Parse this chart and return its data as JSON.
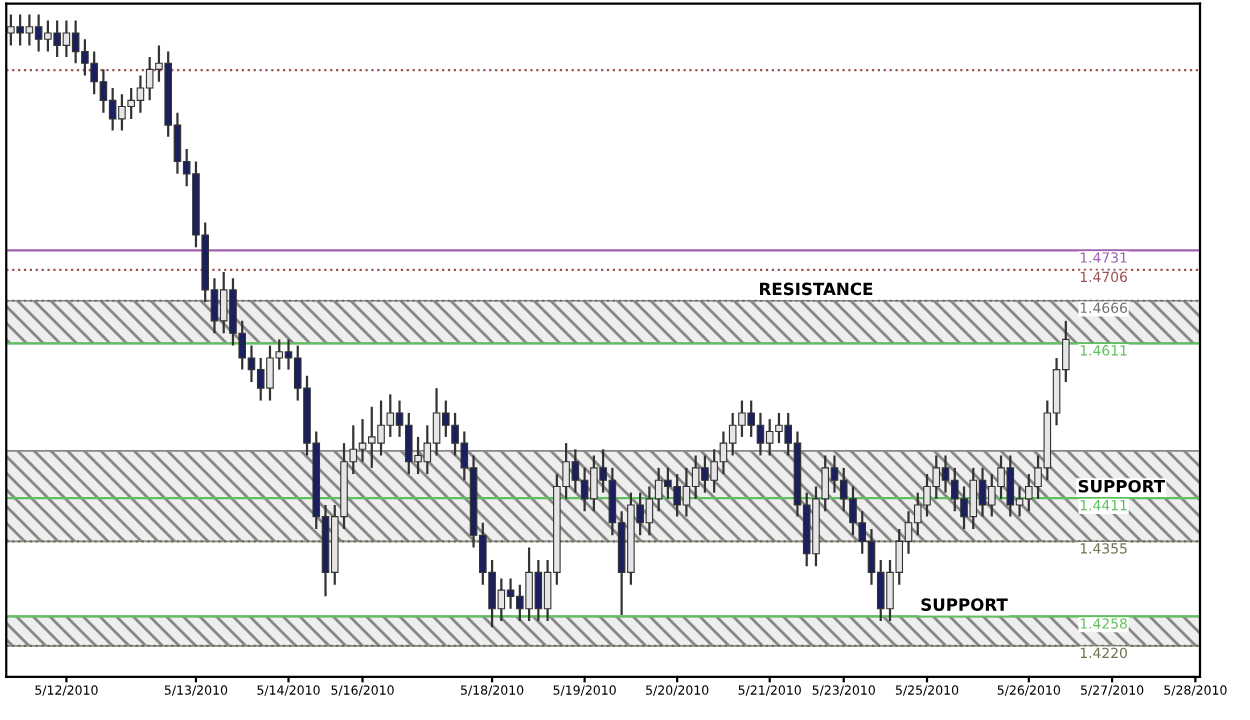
{
  "chart_data": {
    "type": "candlestick",
    "categories": [
      null,
      null,
      null,
      null,
      null,
      null,
      "5/12/2010",
      null,
      null,
      null,
      null,
      null,
      null,
      null,
      null,
      null,
      null,
      null,
      null,
      null,
      "5/13/2010",
      null,
      null,
      null,
      null,
      null,
      null,
      null,
      null,
      null,
      "5/14/2010",
      null,
      null,
      null,
      null,
      null,
      null,
      null,
      "5/16/2010",
      null,
      null,
      null,
      null,
      null,
      null,
      null,
      null,
      null,
      null,
      null,
      null,
      null,
      "5/18/2010",
      null,
      null,
      null,
      null,
      null,
      null,
      null,
      null,
      null,
      "5/19/2010",
      null,
      null,
      null,
      null,
      null,
      null,
      null,
      null,
      null,
      "5/20/2010",
      null,
      null,
      null,
      null,
      null,
      null,
      null,
      null,
      null,
      "5/21/2010",
      null,
      null,
      null,
      null,
      null,
      null,
      null,
      "5/23/2010",
      null,
      null,
      null,
      null,
      null,
      null,
      null,
      null,
      "5/25/2010",
      null,
      null,
      null,
      null,
      null,
      null,
      null,
      null,
      null,
      null,
      "5/26/2010",
      null,
      null,
      null,
      null,
      null,
      null,
      null,
      null,
      "5/27/2010",
      null,
      null,
      null,
      null,
      null,
      null,
      null,
      null,
      "5/28/2010"
    ],
    "ohlc": [
      [
        1.5012,
        1.5036,
        1.4996,
        1.502
      ],
      [
        1.502,
        1.5036,
        1.4996,
        1.5012
      ],
      [
        1.5012,
        1.5036,
        1.4996,
        1.502
      ],
      [
        1.502,
        1.5036,
        1.4988,
        1.5004
      ],
      [
        1.5004,
        1.5028,
        1.4988,
        1.5012
      ],
      [
        1.5012,
        1.5028,
        1.4981,
        1.4996
      ],
      [
        1.4996,
        1.5028,
        1.4981,
        1.5012
      ],
      [
        1.5012,
        1.5028,
        1.4973,
        1.4988
      ],
      [
        1.4988,
        1.5004,
        1.4957,
        1.4973
      ],
      [
        1.4973,
        1.4988,
        1.4933,
        1.4949
      ],
      [
        1.4949,
        1.4965,
        1.4909,
        1.4925
      ],
      [
        1.4925,
        1.4941,
        1.4886,
        1.4901
      ],
      [
        1.4901,
        1.4933,
        1.4886,
        1.4917
      ],
      [
        1.4917,
        1.4941,
        1.4901,
        1.4925
      ],
      [
        1.4925,
        1.4957,
        1.4909,
        1.4941
      ],
      [
        1.4941,
        1.4981,
        1.4925,
        1.4965
      ],
      [
        1.4965,
        1.4996,
        1.4949,
        1.4973
      ],
      [
        1.4973,
        1.4988,
        1.4878,
        1.4893
      ],
      [
        1.4893,
        1.4909,
        1.483,
        1.4846
      ],
      [
        1.4846,
        1.4862,
        1.4814,
        1.483
      ],
      [
        1.483,
        1.4846,
        1.4735,
        1.4751
      ],
      [
        1.4751,
        1.4767,
        1.4664,
        1.468
      ],
      [
        1.468,
        1.4695,
        1.4624,
        1.464
      ],
      [
        1.464,
        1.4703,
        1.4624,
        1.468
      ],
      [
        1.468,
        1.4695,
        1.4608,
        1.4624
      ],
      [
        1.4624,
        1.464,
        1.4577,
        1.4592
      ],
      [
        1.4592,
        1.4608,
        1.4561,
        1.4577
      ],
      [
        1.4577,
        1.4592,
        1.4537,
        1.4553
      ],
      [
        1.4553,
        1.4608,
        1.4537,
        1.4592
      ],
      [
        1.4592,
        1.4616,
        1.4577,
        1.46
      ],
      [
        1.46,
        1.4616,
        1.4577,
        1.4592
      ],
      [
        1.4592,
        1.4608,
        1.4537,
        1.4553
      ],
      [
        1.4553,
        1.4569,
        1.4466,
        1.4482
      ],
      [
        1.4482,
        1.4497,
        1.4371,
        1.4387
      ],
      [
        1.4387,
        1.4402,
        1.4284,
        1.4315
      ],
      [
        1.4315,
        1.4402,
        1.4299,
        1.4387
      ],
      [
        1.4387,
        1.4482,
        1.4371,
        1.4458
      ],
      [
        1.4458,
        1.4505,
        1.4442,
        1.4474
      ],
      [
        1.4474,
        1.4513,
        1.4458,
        1.4482
      ],
      [
        1.4482,
        1.4529,
        1.445,
        1.449
      ],
      [
        1.4482,
        1.4537,
        1.4466,
        1.4505
      ],
      [
        1.4505,
        1.4545,
        1.449,
        1.4521
      ],
      [
        1.4521,
        1.4537,
        1.449,
        1.4505
      ],
      [
        1.4505,
        1.4521,
        1.4442,
        1.4458
      ],
      [
        1.4458,
        1.449,
        1.4442,
        1.4466
      ],
      [
        1.4458,
        1.4505,
        1.4442,
        1.4482
      ],
      [
        1.4482,
        1.4553,
        1.4466,
        1.4521
      ],
      [
        1.4521,
        1.4537,
        1.449,
        1.4505
      ],
      [
        1.4505,
        1.4521,
        1.4466,
        1.4482
      ],
      [
        1.4482,
        1.4497,
        1.4434,
        1.445
      ],
      [
        1.445,
        1.4466,
        1.4347,
        1.4363
      ],
      [
        1.4363,
        1.4379,
        1.4299,
        1.4315
      ],
      [
        1.4315,
        1.4331,
        1.4244,
        1.4268
      ],
      [
        1.4268,
        1.4307,
        1.4252,
        1.4292
      ],
      [
        1.4292,
        1.4307,
        1.4268,
        1.4284
      ],
      [
        1.4284,
        1.4299,
        1.4252,
        1.4268
      ],
      [
        1.4268,
        1.4347,
        1.4252,
        1.4315
      ],
      [
        1.4315,
        1.4331,
        1.4252,
        1.4268
      ],
      [
        1.4268,
        1.4331,
        1.4252,
        1.4315
      ],
      [
        1.4315,
        1.4442,
        1.4299,
        1.4426
      ],
      [
        1.4426,
        1.4482,
        1.441,
        1.4458
      ],
      [
        1.4458,
        1.4474,
        1.4418,
        1.4434
      ],
      [
        1.4434,
        1.445,
        1.4394,
        1.441
      ],
      [
        1.441,
        1.4466,
        1.4394,
        1.445
      ],
      [
        1.445,
        1.4474,
        1.4418,
        1.4434
      ],
      [
        1.4434,
        1.445,
        1.4363,
        1.4379
      ],
      [
        1.4379,
        1.4394,
        1.426,
        1.4315
      ],
      [
        1.4315,
        1.4418,
        1.4299,
        1.4402
      ],
      [
        1.4402,
        1.4418,
        1.4363,
        1.4379
      ],
      [
        1.4379,
        1.4426,
        1.4363,
        1.441
      ],
      [
        1.441,
        1.445,
        1.4394,
        1.4434
      ],
      [
        1.4434,
        1.445,
        1.441,
        1.4426
      ],
      [
        1.4426,
        1.4442,
        1.4387,
        1.4402
      ],
      [
        1.4402,
        1.445,
        1.4387,
        1.4426
      ],
      [
        1.4426,
        1.4466,
        1.441,
        1.445
      ],
      [
        1.445,
        1.4466,
        1.4418,
        1.4434
      ],
      [
        1.4434,
        1.4474,
        1.4418,
        1.4458
      ],
      [
        1.4458,
        1.4497,
        1.4442,
        1.4482
      ],
      [
        1.4482,
        1.4521,
        1.4466,
        1.4505
      ],
      [
        1.4505,
        1.4537,
        1.449,
        1.4521
      ],
      [
        1.4521,
        1.4537,
        1.449,
        1.4505
      ],
      [
        1.4505,
        1.4521,
        1.4466,
        1.4482
      ],
      [
        1.4482,
        1.4513,
        1.4466,
        1.4497
      ],
      [
        1.4497,
        1.4521,
        1.4482,
        1.4505
      ],
      [
        1.4505,
        1.4521,
        1.4466,
        1.4482
      ],
      [
        1.4482,
        1.4497,
        1.4387,
        1.4402
      ],
      [
        1.4402,
        1.4418,
        1.4323,
        1.4339
      ],
      [
        1.4339,
        1.4426,
        1.4323,
        1.441
      ],
      [
        1.441,
        1.4466,
        1.4394,
        1.445
      ],
      [
        1.445,
        1.4466,
        1.4418,
        1.4434
      ],
      [
        1.4434,
        1.445,
        1.4394,
        1.441
      ],
      [
        1.441,
        1.4426,
        1.4363,
        1.4379
      ],
      [
        1.4379,
        1.4394,
        1.4339,
        1.4355
      ],
      [
        1.4355,
        1.4371,
        1.4299,
        1.4315
      ],
      [
        1.4315,
        1.4331,
        1.4252,
        1.4268
      ],
      [
        1.4268,
        1.4331,
        1.4252,
        1.4315
      ],
      [
        1.4315,
        1.4371,
        1.4299,
        1.4355
      ],
      [
        1.4355,
        1.4394,
        1.4339,
        1.4379
      ],
      [
        1.4379,
        1.4418,
        1.4363,
        1.4402
      ],
      [
        1.4402,
        1.4442,
        1.4387,
        1.4426
      ],
      [
        1.4426,
        1.4466,
        1.441,
        1.445
      ],
      [
        1.445,
        1.4466,
        1.4418,
        1.4434
      ],
      [
        1.4434,
        1.445,
        1.4394,
        1.441
      ],
      [
        1.441,
        1.4426,
        1.4371,
        1.4387
      ],
      [
        1.4387,
        1.445,
        1.4371,
        1.4434
      ],
      [
        1.4434,
        1.445,
        1.4387,
        1.4402
      ],
      [
        1.4402,
        1.4442,
        1.4387,
        1.4426
      ],
      [
        1.4426,
        1.4466,
        1.441,
        1.445
      ],
      [
        1.445,
        1.4466,
        1.4387,
        1.4402
      ],
      [
        1.4402,
        1.4426,
        1.4387,
        1.441
      ],
      [
        1.441,
        1.4442,
        1.4394,
        1.4426
      ],
      [
        1.4426,
        1.4466,
        1.441,
        1.445
      ],
      [
        1.445,
        1.4537,
        1.4434,
        1.4521
      ],
      [
        1.4521,
        1.4592,
        1.4505,
        1.4577
      ],
      [
        1.4577,
        1.464,
        1.4561,
        1.4616
      ],
      null,
      null,
      null,
      null,
      null,
      null,
      null,
      null,
      null,
      null,
      null,
      null,
      null,
      null
    ],
    "ylim": [
      1.418,
      1.505
    ],
    "tick_labels": "x",
    "ref_lines": [
      {
        "axis": "y",
        "value": 1.4964,
        "label": null,
        "color": "#a05050",
        "line_style": "dotted"
      },
      {
        "axis": "y",
        "value": 1.4731,
        "label": "1.4731",
        "color": "#a060b0",
        "line_style": "solid"
      },
      {
        "axis": "y",
        "value": 1.4706,
        "label": "1.4706",
        "color": "#a05050",
        "line_style": "dotted"
      },
      {
        "axis": "y",
        "value": 1.4666,
        "label": "1.4666",
        "color": "#707070",
        "line_style": "dotted"
      },
      {
        "axis": "y",
        "value": 1.4611,
        "label": "1.4611",
        "color": "#60c060",
        "line_style": "solid"
      },
      {
        "axis": "y",
        "value": 1.4411,
        "label": "1.4411",
        "color": "#60c060",
        "line_style": "solid"
      },
      {
        "axis": "y",
        "value": 1.4355,
        "label": "1.4355",
        "color": "#707050",
        "line_style": "dotted"
      },
      {
        "axis": "y",
        "value": 1.4258,
        "label": "1.4258",
        "color": "#60c060",
        "line_style": "solid"
      },
      {
        "axis": "y",
        "value": 1.422,
        "label": "1.4220",
        "color": "#707050",
        "line_style": "dotted"
      }
    ],
    "bands": [
      {
        "axis": "y",
        "from": 1.4611,
        "to": 1.4666,
        "label": "RESISTANCE",
        "color": "#888888"
      },
      {
        "axis": "y",
        "from": 1.4355,
        "to": 1.4411,
        "label": "SUPPORT",
        "color": "#888888"
      },
      {
        "axis": "y",
        "from": 1.4411,
        "to": 1.4472,
        "label": null,
        "color": "#888888"
      },
      {
        "axis": "y",
        "from": 1.422,
        "to": 1.4258,
        "label": "SUPPORT",
        "color": "#888888"
      }
    ],
    "grid": false,
    "legend": false
  }
}
